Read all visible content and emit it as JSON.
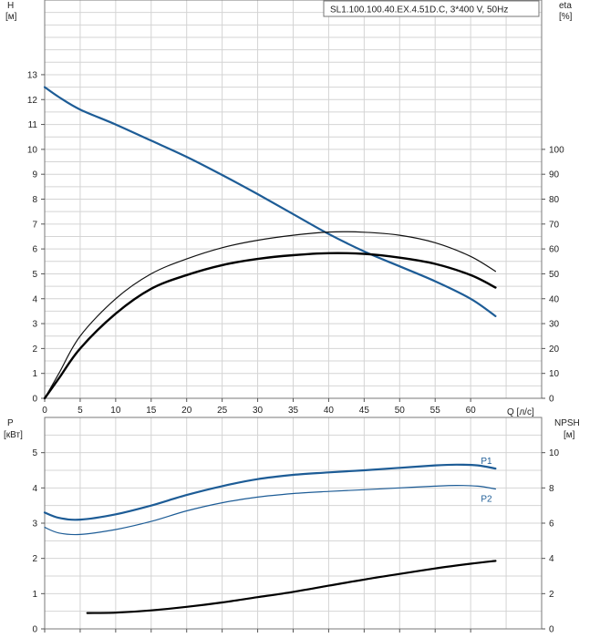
{
  "chart_data": [
    {
      "type": "line",
      "title": "SL1.100.100.40.EX.4.51D.C, 3*400 V, 50Hz",
      "xlabel": "Q [л/с]",
      "ylabel_left_name": "H",
      "ylabel_left_unit": "[м]",
      "ylabel_right_name": "eta",
      "ylabel_right_unit": "[%]",
      "xlim": [
        0,
        70
      ],
      "ylim_left": [
        0,
        16
      ],
      "ylim_right": [
        0,
        160
      ],
      "x_ticks": [
        0,
        5,
        10,
        15,
        20,
        25,
        30,
        35,
        40,
        45,
        50,
        55,
        60
      ],
      "x_tick_labels": [
        "0",
        "5",
        "10",
        "15",
        "20",
        "25",
        "30",
        "35",
        "40",
        "45",
        "50",
        "55",
        "60"
      ],
      "y_left_ticks": [
        0,
        1,
        2,
        3,
        4,
        5,
        6,
        7,
        8,
        9,
        10,
        11,
        12,
        13
      ],
      "y_left_tick_labels": [
        "0",
        "1",
        "2",
        "3",
        "4",
        "5",
        "6",
        "7",
        "8",
        "9",
        "10",
        "11",
        "12",
        "13"
      ],
      "y_right_ticks": [
        0,
        10,
        20,
        30,
        40,
        50,
        60,
        70,
        80,
        90,
        100
      ],
      "y_right_tick_labels": [
        "0",
        "10",
        "20",
        "30",
        "40",
        "50",
        "60",
        "70",
        "80",
        "90",
        "100"
      ],
      "grid": true,
      "series": [
        {
          "axis": "left",
          "color": "#1d5c96",
          "width": 2.2,
          "x": [
            0,
            2,
            5,
            10,
            15,
            20,
            25,
            30,
            35,
            40,
            45,
            50,
            55,
            60,
            63.5
          ],
          "y": [
            12.5,
            12.1,
            11.6,
            11.0,
            10.35,
            9.7,
            8.97,
            8.2,
            7.4,
            6.6,
            5.9,
            5.3,
            4.7,
            4.0,
            3.3
          ]
        },
        {
          "axis": "right",
          "color": "#111111",
          "width": 1.2,
          "x": [
            0,
            2,
            5,
            10,
            15,
            20,
            25,
            30,
            35,
            40,
            45,
            50,
            55,
            60,
            63.5
          ],
          "y": [
            0,
            10,
            25,
            40,
            50,
            56,
            60.5,
            63.5,
            65.5,
            66.8,
            66.7,
            65.5,
            62.5,
            57,
            51
          ]
        },
        {
          "axis": "right",
          "color": "#000000",
          "width": 2.4,
          "x": [
            0,
            2,
            5,
            10,
            15,
            20,
            25,
            30,
            35,
            40,
            45,
            50,
            55,
            60,
            63.5
          ],
          "y": [
            0,
            8,
            20,
            34,
            44,
            49.5,
            53.5,
            56,
            57.5,
            58.3,
            58,
            56.5,
            54,
            49.5,
            44.5
          ]
        }
      ]
    },
    {
      "type": "line",
      "xlim": [
        0,
        70
      ],
      "ylabel_left_name": "P",
      "ylabel_left_unit": "[кВт]",
      "ylabel_right_name": "NPSH",
      "ylabel_right_unit": "[м]",
      "ylim_left": [
        0,
        6
      ],
      "ylim_right": [
        0,
        12
      ],
      "y_left_ticks": [
        0,
        1,
        2,
        3,
        4,
        5
      ],
      "y_left_tick_labels": [
        "0",
        "1",
        "2",
        "3",
        "4",
        "5"
      ],
      "y_right_ticks": [
        0,
        2,
        4,
        6,
        8,
        10
      ],
      "y_right_tick_labels": [
        "0",
        "2",
        "4",
        "6",
        "8",
        "10"
      ],
      "grid": true,
      "series": [
        {
          "name": "P1",
          "axis": "left",
          "color": "#1d5c96",
          "width": 2.2,
          "x": [
            0,
            2,
            5,
            10,
            15,
            20,
            25,
            30,
            35,
            40,
            45,
            50,
            55,
            58,
            61,
            63.5
          ],
          "y": [
            3.3,
            3.15,
            3.1,
            3.25,
            3.5,
            3.8,
            4.05,
            4.25,
            4.37,
            4.44,
            4.5,
            4.57,
            4.64,
            4.66,
            4.64,
            4.55
          ]
        },
        {
          "name": "P2",
          "axis": "left",
          "color": "#1d5c96",
          "width": 1.2,
          "x": [
            0,
            2,
            5,
            10,
            15,
            20,
            25,
            30,
            35,
            40,
            45,
            50,
            55,
            58,
            61,
            63.5
          ],
          "y": [
            2.88,
            2.72,
            2.68,
            2.82,
            3.05,
            3.35,
            3.58,
            3.74,
            3.84,
            3.9,
            3.95,
            4.0,
            4.05,
            4.07,
            4.05,
            3.97
          ]
        },
        {
          "axis": "right",
          "color": "#000000",
          "width": 2.2,
          "x": [
            6,
            10,
            15,
            20,
            25,
            30,
            35,
            40,
            45,
            50,
            55,
            60,
            63.5
          ],
          "y": [
            0.9,
            0.92,
            1.05,
            1.25,
            1.5,
            1.8,
            2.1,
            2.45,
            2.8,
            3.12,
            3.43,
            3.7,
            3.86
          ]
        }
      ]
    }
  ]
}
